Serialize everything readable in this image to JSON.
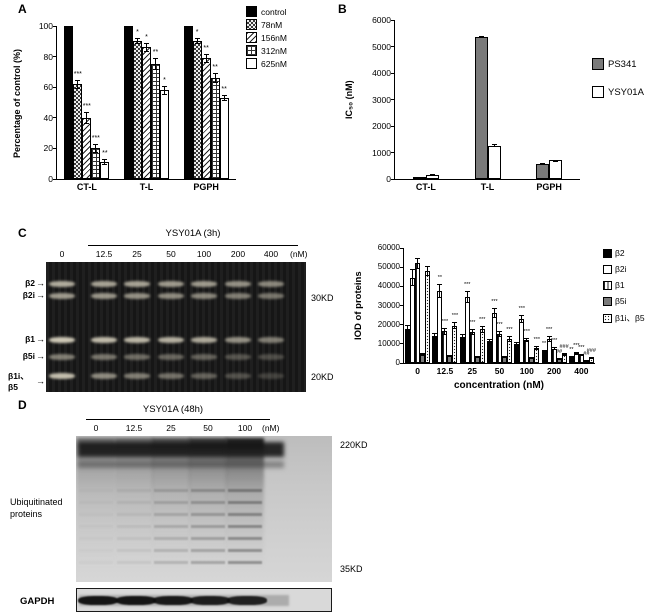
{
  "panels": {
    "a": "A",
    "b": "B",
    "c": "C",
    "d": "D"
  },
  "chart_data": [
    {
      "panel": "A",
      "type": "bar",
      "ylabel": "Percentage of control (%)",
      "xlabel": "",
      "ylim": [
        0,
        100
      ],
      "yticks": [
        0,
        20,
        40,
        60,
        80,
        100
      ],
      "categories": [
        "CT-L",
        "T-L",
        "PGPH"
      ],
      "legend_position": "right",
      "series": [
        {
          "name": "control",
          "pattern": "black",
          "values": [
            100,
            100,
            100
          ],
          "errors": [
            0,
            0,
            0
          ],
          "sig": [
            "",
            "",
            ""
          ]
        },
        {
          "name": "78nM",
          "pattern": "checker",
          "values": [
            62,
            90,
            90
          ],
          "errors": [
            3,
            2,
            2
          ],
          "sig": [
            "***",
            "*",
            "*"
          ]
        },
        {
          "name": "156nM",
          "pattern": "diag",
          "values": [
            40,
            86,
            79
          ],
          "errors": [
            4,
            3,
            3
          ],
          "sig": [
            "***",
            "*",
            "**"
          ]
        },
        {
          "name": "312nM",
          "pattern": "cross",
          "values": [
            20,
            75,
            66
          ],
          "errors": [
            3,
            4,
            3
          ],
          "sig": [
            "***",
            "**",
            "**"
          ]
        },
        {
          "name": "625nM",
          "pattern": "white",
          "values": [
            11,
            58,
            53
          ],
          "errors": [
            2,
            3,
            2
          ],
          "sig": [
            "**",
            "*",
            "**"
          ]
        }
      ]
    },
    {
      "panel": "B",
      "type": "bar",
      "ylabel": "IC₅₀ (nM)",
      "xlabel": "",
      "ylim": [
        0,
        6000
      ],
      "yticks": [
        0,
        1000,
        2000,
        3000,
        4000,
        5000,
        6000
      ],
      "categories": [
        "CT-L",
        "T-L",
        "PGPH"
      ],
      "legend_position": "right",
      "series": [
        {
          "name": "PS341",
          "pattern": "gray",
          "values": [
            60,
            5350,
            560
          ],
          "errors": [
            10,
            40,
            25
          ],
          "sig": [
            "",
            "",
            ""
          ]
        },
        {
          "name": "YSY01A",
          "pattern": "white",
          "values": [
            150,
            1250,
            700
          ],
          "errors": [
            20,
            60,
            35
          ],
          "sig": [
            "",
            "",
            ""
          ]
        }
      ]
    },
    {
      "panel": "C",
      "type": "bar",
      "ylabel": "IOD of proteins",
      "xlabel": "concentration (nM)",
      "ylim": [
        0,
        60000
      ],
      "yticks": [
        0,
        10000,
        20000,
        30000,
        40000,
        50000,
        60000
      ],
      "categories": [
        "0",
        "12.5",
        "25",
        "50",
        "100",
        "200",
        "400"
      ],
      "legend_position": "right",
      "series": [
        {
          "name": "β2",
          "pattern": "black",
          "values": [
            17500,
            14000,
            13800,
            11500,
            9800,
            6200,
            3000
          ],
          "errors": [
            2500,
            1600,
            1400,
            1200,
            1000,
            800,
            500
          ],
          "sig": [
            "",
            "",
            "",
            "",
            "",
            "**",
            "**"
          ]
        },
        {
          "name": "β2i",
          "pattern": "white",
          "values": [
            44500,
            37500,
            34500,
            26000,
            23000,
            12500,
            5000
          ],
          "errors": [
            4500,
            3500,
            3000,
            2500,
            2200,
            1500,
            800
          ],
          "sig": [
            "",
            "**",
            "***",
            "***",
            "***",
            "***",
            "***"
          ]
        },
        {
          "name": "β1",
          "pattern": "vert",
          "values": [
            52000,
            16500,
            16000,
            15000,
            12000,
            7500,
            4000
          ],
          "errors": [
            3000,
            1800,
            1600,
            1500,
            1300,
            900,
            600
          ],
          "sig": [
            "",
            "***",
            "***",
            "***",
            "***",
            "***",
            "***"
          ]
        },
        {
          "name": "β5i",
          "pattern": "gray",
          "values": [
            4500,
            3500,
            3200,
            3000,
            2600,
            2000,
            1500
          ],
          "errors": [
            800,
            600,
            500,
            500,
            400,
            350,
            300
          ],
          "sig": [
            "",
            "",
            "",
            "",
            "",
            "##",
            "##"
          ]
        },
        {
          "name": "β1i、β5",
          "pattern": "dots",
          "values": [
            48000,
            19500,
            17500,
            12500,
            8000,
            4500,
            2500
          ],
          "errors": [
            2500,
            2000,
            1800,
            1400,
            1000,
            700,
            500
          ],
          "sig": [
            "",
            "***",
            "***",
            "***",
            "***",
            "###",
            "###"
          ]
        }
      ]
    }
  ],
  "gel_c": {
    "treatment_label": "YSY01A (3h)",
    "lane_labels": [
      "0",
      "12.5",
      "25",
      "50",
      "100",
      "200",
      "400"
    ],
    "unit_label": "(nM)",
    "bands": [
      {
        "name": "β2",
        "y": 0.17,
        "intensities": [
          0.8,
          0.75,
          0.75,
          0.7,
          0.7,
          0.65,
          0.6
        ]
      },
      {
        "name": "β2i",
        "y": 0.26,
        "intensities": [
          0.7,
          0.68,
          0.65,
          0.62,
          0.6,
          0.55,
          0.5
        ]
      },
      {
        "name": "β1",
        "y": 0.6,
        "intensities": [
          0.95,
          0.88,
          0.85,
          0.82,
          0.78,
          0.65,
          0.55
        ]
      },
      {
        "name": "β5i",
        "y": 0.73,
        "intensities": [
          0.55,
          0.5,
          0.45,
          0.42,
          0.4,
          0.32,
          0.28
        ]
      },
      {
        "name": "β1i、β5",
        "y": 0.88,
        "intensities": [
          0.9,
          0.62,
          0.55,
          0.48,
          0.4,
          0.3,
          0.22
        ]
      }
    ],
    "markers": [
      {
        "label": "30KD",
        "y": 0.28
      },
      {
        "label": "20KD",
        "y": 0.885
      }
    ]
  },
  "blot_d": {
    "treatment_label": "YSY01A (48h)",
    "lane_labels": [
      "0",
      "12.5",
      "25",
      "50",
      "100"
    ],
    "unit_label": "(nM)",
    "left_label": "Ubiquitinated proteins",
    "marker_top": "220KD",
    "marker_bottom": "35KD",
    "gapdh_label": "GAPDH",
    "smear_intensities": [
      0.5,
      0.55,
      0.7,
      0.85,
      1.0
    ],
    "ladder_intensities": [
      0.05,
      0.12,
      0.3,
      0.45,
      0.65
    ],
    "gapdh_intensities": [
      0.95,
      0.95,
      0.92,
      0.9,
      0.88
    ]
  }
}
